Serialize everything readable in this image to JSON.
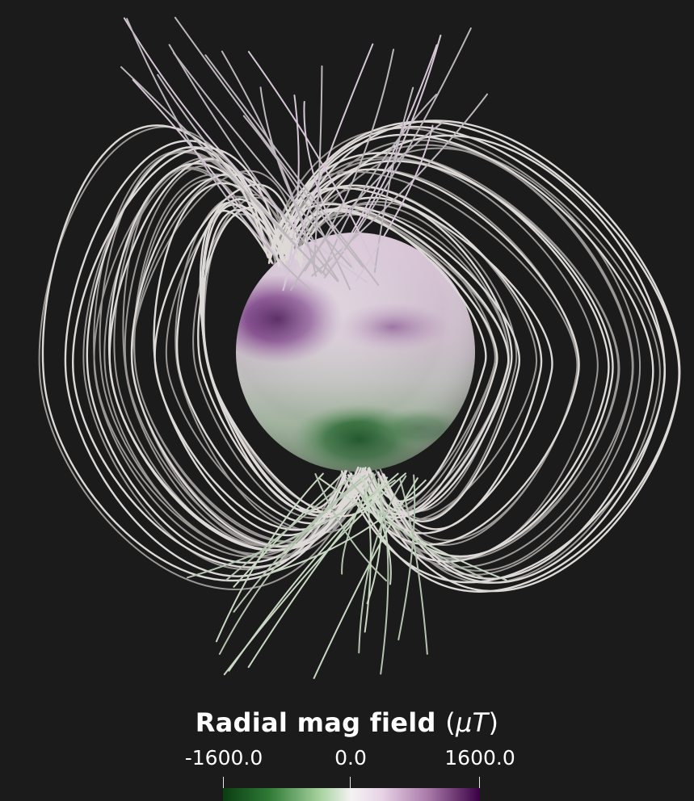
{
  "colorbar": {
    "title_text": "Radial mag field ",
    "unit_open": "(",
    "unit_mu": "μT",
    "unit_close": ")",
    "min_label": "-1600.0",
    "mid_label": "0.0",
    "max_label": "1600.0",
    "min_value": -1600.0,
    "mid_value": 0.0,
    "max_value": 1600.0,
    "colors": {
      "negative": "#0b3d12",
      "zero": "#f4f2f3",
      "positive": "#3a0045"
    }
  },
  "scene": {
    "background": "#1b1b1b",
    "field_line_color": "#c9c6c4",
    "sphere_base_color": "#c8c4c6"
  }
}
